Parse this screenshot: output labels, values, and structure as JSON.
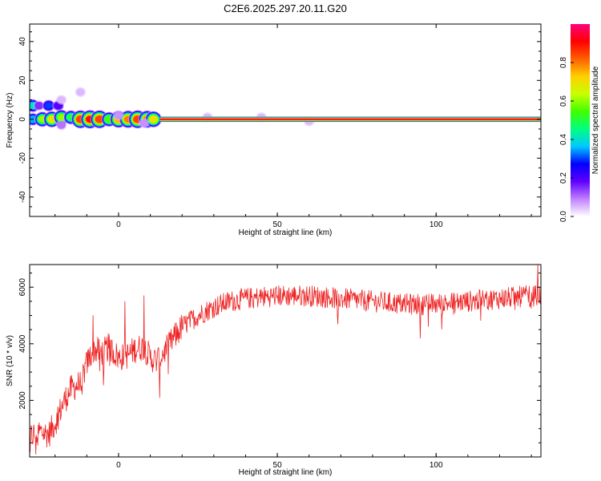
{
  "chart_data": [
    {
      "type": "heatmap",
      "title": "C2E6.2025.297.20.11.G20",
      "xlabel": "Height of straight line (km)",
      "ylabel": "Frequency (Hz)",
      "xlim": [
        -28,
        133
      ],
      "ylim": [
        -50,
        49
      ],
      "xticks": [
        0,
        50,
        100
      ],
      "yticks": [
        -40,
        -20,
        0,
        20,
        40
      ],
      "colorbar": {
        "label": "Normalized spectral amplitude",
        "range": [
          0,
          1
        ],
        "ticks": [
          0.0,
          0.2,
          0.4,
          0.6,
          0.8
        ],
        "tick_labels": [
          "0.0",
          "0.2",
          "0.4",
          "0.6",
          "0.8"
        ],
        "colors": [
          "#ffffff",
          "#c080ff",
          "#6000ff",
          "#0000ff",
          "#00c8ff",
          "#00ff80",
          "#40ff00",
          "#c8ff00",
          "#ffd000",
          "#ff6000",
          "#ff0000",
          "#ff0080"
        ]
      },
      "main_line": {
        "frequency": 0,
        "x_start": 13,
        "x_end": 133,
        "amplitude": 0.95
      },
      "blobs": [
        {
          "x": -27,
          "y": 7,
          "amp": 0.4
        },
        {
          "x": -25,
          "y": 7,
          "amp": 0.15
        },
        {
          "x": -22,
          "y": 7,
          "amp": 0.3
        },
        {
          "x": -19,
          "y": 7,
          "amp": 0.2
        },
        {
          "x": -18,
          "y": 10,
          "amp": 0.05
        },
        {
          "x": -12,
          "y": 14,
          "amp": 0.05
        },
        {
          "x": -27,
          "y": 0,
          "amp": 0.35
        },
        {
          "x": -24,
          "y": 0,
          "amp": 0.6
        },
        {
          "x": -21,
          "y": 0,
          "amp": 0.7
        },
        {
          "x": -18,
          "y": 1,
          "amp": 0.6
        },
        {
          "x": -15,
          "y": 1,
          "amp": 0.5
        },
        {
          "x": -12,
          "y": 0,
          "amp": 0.85
        },
        {
          "x": -9,
          "y": 0,
          "amp": 0.9
        },
        {
          "x": -6,
          "y": 0,
          "amp": 0.85
        },
        {
          "x": -3,
          "y": 0,
          "amp": 0.55
        },
        {
          "x": 0,
          "y": 0,
          "amp": 0.75
        },
        {
          "x": 3,
          "y": 0,
          "amp": 0.8
        },
        {
          "x": 6,
          "y": 0,
          "amp": 0.85
        },
        {
          "x": 9,
          "y": 0,
          "amp": 0.8
        },
        {
          "x": 11,
          "y": 0,
          "amp": 0.7
        },
        {
          "x": -18,
          "y": -3,
          "amp": 0.1
        },
        {
          "x": 0,
          "y": 2,
          "amp": 0.08
        },
        {
          "x": 8,
          "y": -2,
          "amp": 0.08
        },
        {
          "x": 28,
          "y": 1,
          "amp": 0.05
        },
        {
          "x": 45,
          "y": 1,
          "amp": 0.05
        },
        {
          "x": 60,
          "y": -1,
          "amp": 0.05
        }
      ]
    },
    {
      "type": "line",
      "xlabel": "Height of straight line (km)",
      "ylabel": "SNR (10 * v/v)",
      "xlim": [
        -28,
        133
      ],
      "ylim": [
        0,
        6800
      ],
      "xticks": [
        0,
        50,
        100
      ],
      "yticks": [
        2000,
        4000,
        6000
      ],
      "color": "#ee2222",
      "trend": {
        "x": [
          -28,
          -25,
          -22,
          -20,
          -17,
          -15,
          -12,
          -10,
          -8,
          -5,
          -3,
          0,
          3,
          5,
          8,
          10,
          12,
          15,
          18,
          20,
          25,
          30,
          35,
          40,
          50,
          60,
          70,
          80,
          90,
          100,
          110,
          120,
          130,
          133
        ],
        "y": [
          700,
          900,
          800,
          1200,
          2000,
          2400,
          2600,
          3300,
          3800,
          3700,
          3900,
          3500,
          3600,
          3800,
          3900,
          3500,
          3400,
          3800,
          4300,
          4600,
          5000,
          5300,
          5500,
          5600,
          5700,
          5700,
          5600,
          5500,
          5400,
          5400,
          5500,
          5600,
          5700,
          5700
        ]
      },
      "noise_amplitude": 380,
      "notable_peaks": [
        {
          "x": -26,
          "y": 100
        },
        {
          "x": -8,
          "y": 5000
        },
        {
          "x": 2,
          "y": 5500
        },
        {
          "x": 8,
          "y": 5700
        },
        {
          "x": 13,
          "y": 2100
        },
        {
          "x": 95,
          "y": 4200
        },
        {
          "x": 132,
          "y": 6800
        }
      ]
    }
  ]
}
